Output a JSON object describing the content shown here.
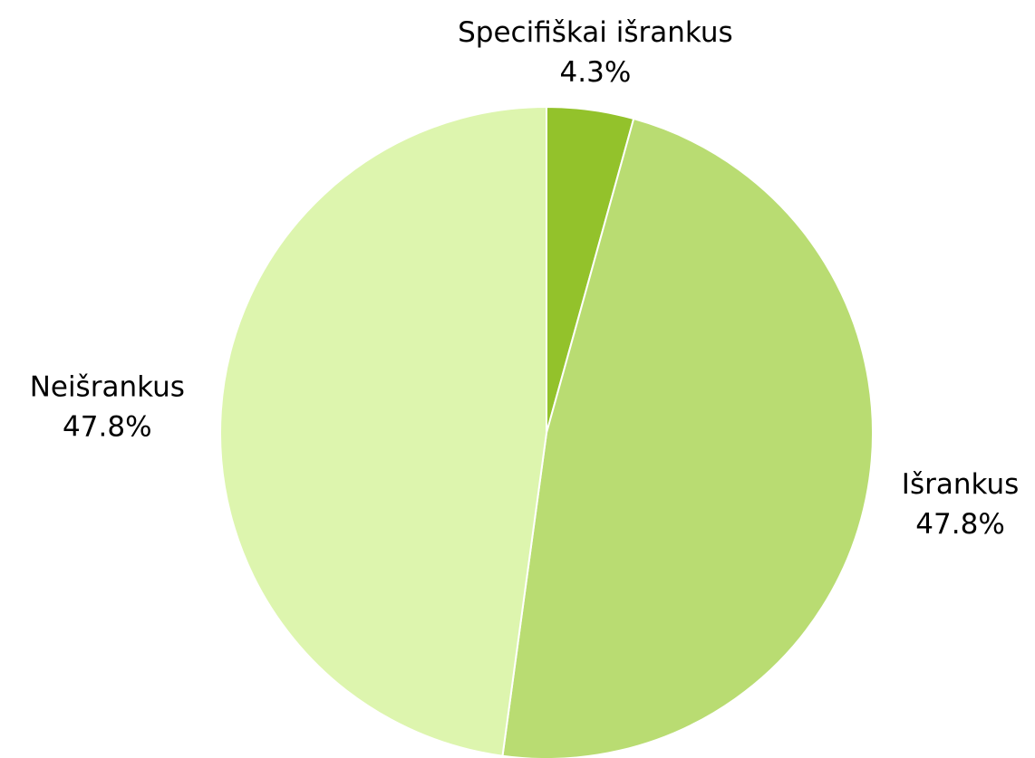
{
  "chart_data": {
    "type": "pie",
    "categories": [
      "Specifiškai išrankus",
      "Išrankus",
      "Neišrankus"
    ],
    "values": [
      4.3,
      47.8,
      47.8
    ],
    "value_labels": [
      "4.3%",
      "47.8%",
      "47.8%"
    ],
    "colors": [
      "#93c22b",
      "#b9dc72",
      "#ddf5ae"
    ]
  }
}
